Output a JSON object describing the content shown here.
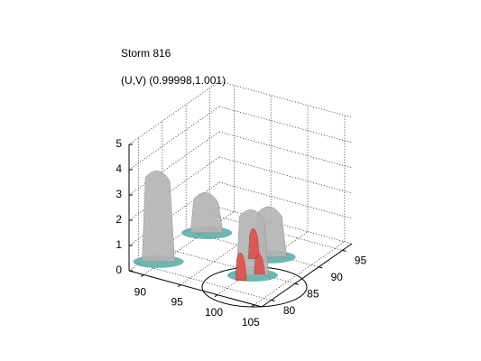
{
  "chart_data": {
    "type": "surface3d",
    "title": "Storm 816",
    "subtitle": "(U,V) (0.99998,1.001)",
    "xlim": [
      88,
      106
    ],
    "ylim": [
      78,
      97
    ],
    "zlim": [
      0,
      5
    ],
    "xticks": [
      90,
      95,
      100,
      105
    ],
    "yticks": [
      80,
      85,
      90,
      95
    ],
    "zticks": [
      0,
      1,
      2,
      3,
      4,
      5
    ],
    "grid": true,
    "series": [
      {
        "color": "#b4b4b4",
        "x": [
          89.6,
          90.3,
          99.9,
          100.7
        ],
        "y": [
          81.7,
          90.8,
          89.3,
          84.3
        ],
        "z": [
          3.7,
          1.7,
          2.1,
          2.7
        ]
      },
      {
        "color": "#e0504a",
        "x": [
          98.5,
          101.2,
          100.3
        ],
        "y": [
          88.0,
          85.0,
          82.5
        ],
        "z": [
          1.3,
          0.9,
          1.2
        ]
      }
    ]
  }
}
